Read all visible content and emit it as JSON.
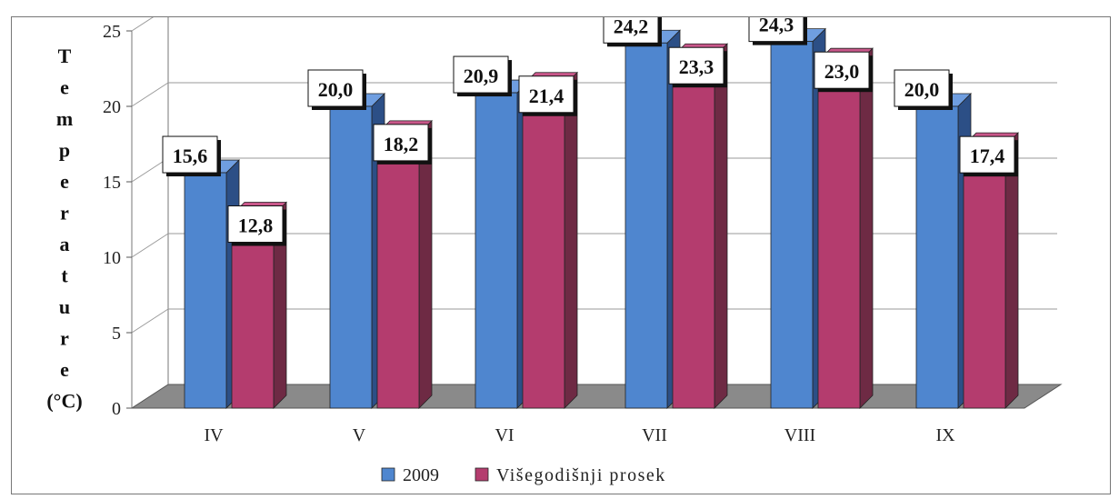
{
  "chart_data": {
    "type": "bar",
    "ylabel": "Temperature (°C)",
    "ylabel_letters": [
      "T",
      "e",
      "m",
      "p",
      "e",
      "r",
      "a",
      "t",
      "u",
      "r",
      "e",
      "(°C)"
    ],
    "categories": [
      "IV",
      "V",
      "VI",
      "VII",
      "VIII",
      "IX"
    ],
    "ylim": [
      0,
      25
    ],
    "yticks": [
      "0",
      "5",
      "10",
      "15",
      "20",
      "25"
    ],
    "grid": true,
    "legend_position": "bottom",
    "series": [
      {
        "name": "2009",
        "values": [
          15.6,
          20.0,
          20.9,
          24.2,
          24.3,
          20.0
        ],
        "labels": [
          "15,6",
          "20,0",
          "20,9",
          "24,2",
          "24,3",
          "20,0"
        ],
        "color": "#4f86cf",
        "side_color": "#2c4f86",
        "top_color": "#6f9ee0"
      },
      {
        "name": "Višegodišnji prosek",
        "values": [
          12.8,
          18.2,
          21.4,
          23.3,
          23.0,
          17.4
        ],
        "labels": [
          "12,8",
          "18,2",
          "21,4",
          "23,3",
          "23,0",
          "17,4"
        ],
        "color": "#b43c6e",
        "side_color": "#6e2a44",
        "top_color": "#c9578a"
      }
    ],
    "floor_color": "#8a8a8a"
  }
}
